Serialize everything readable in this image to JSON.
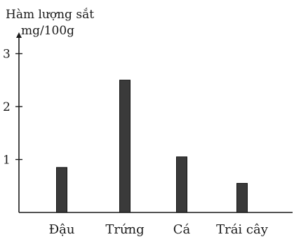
{
  "chart_data": {
    "type": "bar",
    "title": "Hàm lượng sắt",
    "ylabel": "mg/100g",
    "xlabel": "",
    "categories": [
      "Đậu",
      "Trứng",
      "Cá",
      "Trái cây"
    ],
    "values": [
      0.85,
      2.5,
      1.05,
      0.55
    ],
    "ylim": [
      0,
      3.3
    ],
    "yticks": [
      1,
      2,
      3
    ],
    "ytick_labels": [
      "1",
      "2",
      "3"
    ],
    "grid": false,
    "legend": "none",
    "bar_color": "#3a3a3a",
    "axis_color": "#1a1a1a"
  }
}
